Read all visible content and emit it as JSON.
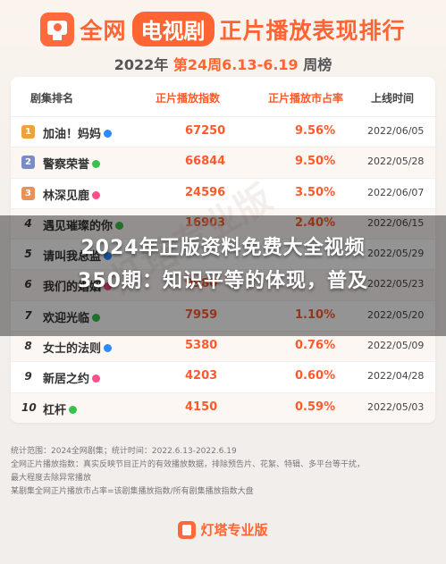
{
  "header": {
    "title_pre": "全网",
    "title_pill": "电视剧",
    "title_post": "正片播放表现排行",
    "subtitle_year": "2022年",
    "subtitle_week": "第24周6.13-6.19",
    "subtitle_suffix": "周榜"
  },
  "table": {
    "columns": [
      "剧集排名",
      "正片播放指数",
      "正片播放市占率",
      "上线时间"
    ],
    "rows": [
      {
        "rank": "1",
        "name": "加油！妈妈",
        "index": "67250",
        "share": "9.56%",
        "date": "2022/06/05"
      },
      {
        "rank": "2",
        "name": "警察荣誉",
        "index": "66844",
        "share": "9.50%",
        "date": "2022/05/28"
      },
      {
        "rank": "3",
        "name": "林深见鹿",
        "index": "24596",
        "share": "3.50%",
        "date": "2022/06/07"
      },
      {
        "rank": "4",
        "name": "遇见璀璨的你",
        "index": "16903",
        "share": "2.40%",
        "date": "2022/06/15"
      },
      {
        "rank": "5",
        "name": "请叫我总监",
        "index": "",
        "share": "",
        "date": "2022/05/29"
      },
      {
        "rank": "6",
        "name": "我们的婚姻",
        "index": "9980",
        "share": "",
        "date": "2022/05/23"
      },
      {
        "rank": "7",
        "name": "欢迎光临",
        "index": "7959",
        "share": "1.10%",
        "date": "2022/05/20"
      },
      {
        "rank": "8",
        "name": "女士的法则",
        "index": "5380",
        "share": "0.76%",
        "date": "2022/05/09"
      },
      {
        "rank": "9",
        "name": "新居之约",
        "index": "4203",
        "share": "0.60%",
        "date": "2022/04/28"
      },
      {
        "rank": "10",
        "name": "杠杆",
        "index": "4150",
        "share": "0.59%",
        "date": "2022/05/03"
      }
    ]
  },
  "watermark": "灯塔专业版",
  "overlay": {
    "line1": "2024年正版资料免费大全视频",
    "line2": "350期：知识平等的体现，普及"
  },
  "notes": {
    "line1": "统计范围：2024全网剧集；统计时间：2022.6.13-2022.6.19",
    "line2": "全网正片播放指数：真实反映节目正片的有效播放数据，排除预告片、花絮、特辑、多平台等干扰，",
    "line3": "最大程度去除异常播放",
    "line4": "某剧集全网正片播放市占率=该剧集播放指数/所有剧集播放指数大盘"
  },
  "footer": {
    "brand": "灯塔专业版"
  },
  "colors": {
    "accent": "#ff6432",
    "gold": "#f0a23a",
    "silver": "#7b8cc4",
    "bronze": "#e8925a",
    "iqiyi": "#35c24d",
    "tencent": "#2a8cff",
    "youku": "#ff4e8a"
  }
}
